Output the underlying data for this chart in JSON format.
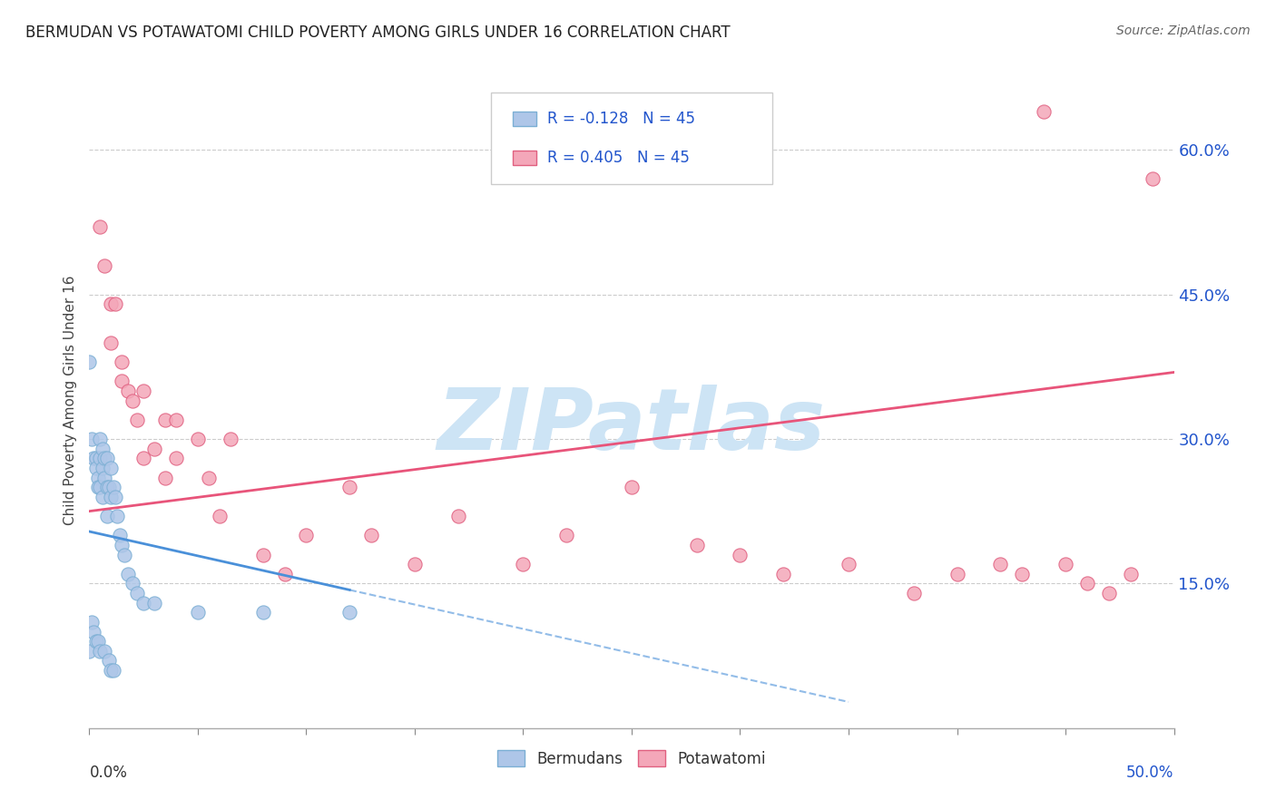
{
  "title": "BERMUDAN VS POTAWATOMI CHILD POVERTY AMONG GIRLS UNDER 16 CORRELATION CHART",
  "source": "Source: ZipAtlas.com",
  "ylabel": "Child Poverty Among Girls Under 16",
  "right_yticks": [
    0.0,
    0.15,
    0.3,
    0.45,
    0.6
  ],
  "right_yticklabels": [
    "",
    "15.0%",
    "30.0%",
    "45.0%",
    "60.0%"
  ],
  "xlim": [
    0.0,
    0.5
  ],
  "ylim": [
    0.0,
    0.68
  ],
  "legend_label1": "Bermudans",
  "legend_label2": "Potawatomi",
  "r1": -0.128,
  "n1": 45,
  "r2": 0.405,
  "n2": 45,
  "bermudan_scatter_color": "#aec6e8",
  "bermudan_edge_color": "#7bafd4",
  "potawatomi_scatter_color": "#f4a7b9",
  "potawatomi_edge_color": "#e06080",
  "bermudan_line_color": "#4a90d9",
  "potawatomi_line_color": "#e8547a",
  "watermark": "ZIPatlas",
  "watermark_color": "#cde4f5",
  "background_color": "#ffffff",
  "grid_color": "#cccccc",
  "bermudan_x": [
    0.0,
    0.0,
    0.001,
    0.001,
    0.002,
    0.002,
    0.003,
    0.003,
    0.003,
    0.004,
    0.004,
    0.004,
    0.005,
    0.005,
    0.005,
    0.005,
    0.006,
    0.006,
    0.006,
    0.007,
    0.007,
    0.007,
    0.008,
    0.008,
    0.008,
    0.009,
    0.009,
    0.01,
    0.01,
    0.01,
    0.011,
    0.011,
    0.012,
    0.013,
    0.014,
    0.015,
    0.016,
    0.018,
    0.02,
    0.022,
    0.025,
    0.03,
    0.05,
    0.08,
    0.12
  ],
  "bermudan_y": [
    0.38,
    0.08,
    0.3,
    0.11,
    0.28,
    0.1,
    0.28,
    0.27,
    0.09,
    0.26,
    0.25,
    0.09,
    0.3,
    0.28,
    0.25,
    0.08,
    0.29,
    0.27,
    0.24,
    0.28,
    0.26,
    0.08,
    0.28,
    0.25,
    0.22,
    0.25,
    0.07,
    0.27,
    0.24,
    0.06,
    0.25,
    0.06,
    0.24,
    0.22,
    0.2,
    0.19,
    0.18,
    0.16,
    0.15,
    0.14,
    0.13,
    0.13,
    0.12,
    0.12,
    0.12
  ],
  "potawatomi_x": [
    0.005,
    0.007,
    0.01,
    0.01,
    0.012,
    0.015,
    0.015,
    0.018,
    0.02,
    0.022,
    0.025,
    0.025,
    0.03,
    0.035,
    0.035,
    0.04,
    0.04,
    0.05,
    0.055,
    0.06,
    0.065,
    0.08,
    0.09,
    0.1,
    0.12,
    0.13,
    0.15,
    0.17,
    0.2,
    0.22,
    0.25,
    0.28,
    0.3,
    0.32,
    0.35,
    0.38,
    0.4,
    0.42,
    0.43,
    0.44,
    0.45,
    0.46,
    0.47,
    0.48,
    0.49
  ],
  "potawatomi_y": [
    0.52,
    0.48,
    0.44,
    0.4,
    0.44,
    0.36,
    0.38,
    0.35,
    0.34,
    0.32,
    0.35,
    0.28,
    0.29,
    0.32,
    0.26,
    0.32,
    0.28,
    0.3,
    0.26,
    0.22,
    0.3,
    0.18,
    0.16,
    0.2,
    0.25,
    0.2,
    0.17,
    0.22,
    0.17,
    0.2,
    0.25,
    0.19,
    0.18,
    0.16,
    0.17,
    0.14,
    0.16,
    0.17,
    0.16,
    0.64,
    0.17,
    0.15,
    0.14,
    0.16,
    0.57
  ]
}
